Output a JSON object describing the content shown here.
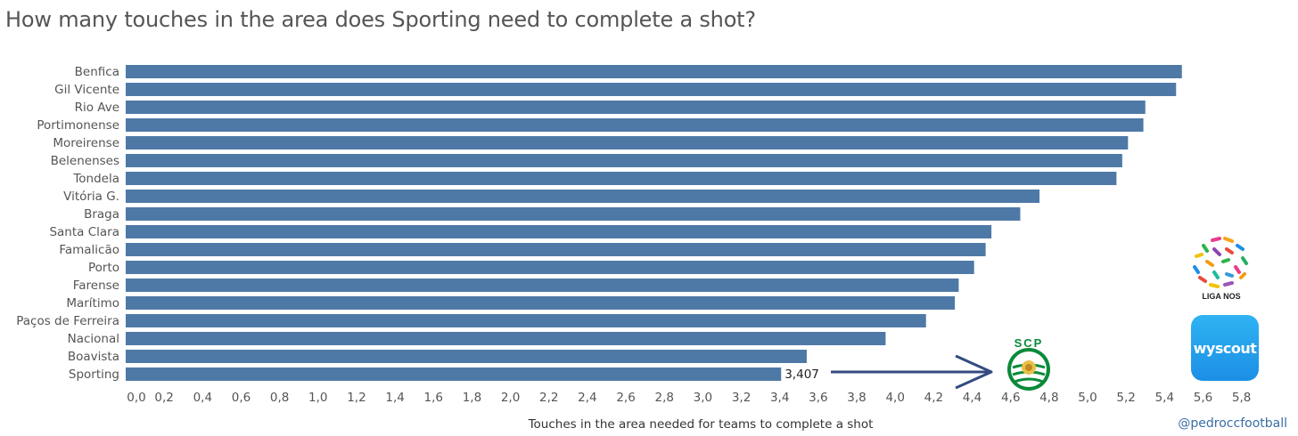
{
  "title": "How many touches in the area does Sporting need to complete a shot?",
  "credit": "@pedroccfootball",
  "logos": {
    "wyscout_text": "wyscout",
    "liga_text": "LIGA NOS",
    "sporting_text": "SCP"
  },
  "colors": {
    "bar": "#4e79a7",
    "arrow": "#344a7f",
    "sporting_green": "#0a8a3a"
  },
  "chart_data": {
    "type": "bar",
    "orientation": "horizontal",
    "categories": [
      "Benfica",
      "Gil Vicente",
      "Rio Ave",
      "Portimonense",
      "Moreirense",
      "Belenenses",
      "Tondela",
      "Vitória G.",
      "Braga",
      "Santa Clara",
      "Famalicão",
      "Porto",
      "Farense",
      "Marítimo",
      "Paços de Ferreira",
      "Nacional",
      "Boavista",
      "Sporting"
    ],
    "values": [
      5.49,
      5.46,
      5.3,
      5.29,
      5.21,
      5.18,
      5.15,
      4.75,
      4.65,
      4.5,
      4.47,
      4.41,
      4.33,
      4.31,
      4.16,
      3.95,
      3.54,
      3.407
    ],
    "annotation": {
      "category": "Sporting",
      "text": "3,407"
    },
    "xlabel": "Touches in the area needed for teams to complete a shot",
    "ticks": [
      "0,0",
      "0,2",
      "0,4",
      "0,6",
      "0,8",
      "1,0",
      "1,2",
      "1,4",
      "1,6",
      "1,8",
      "2,0",
      "2,2",
      "2,4",
      "2,6",
      "2,8",
      "3,0",
      "3,2",
      "3,4",
      "3,6",
      "3,8",
      "4,0",
      "4,2",
      "4,4",
      "4,6",
      "4,8",
      "5,0",
      "5,2",
      "5,4",
      "5,6",
      "5,8"
    ],
    "xlim": [
      0,
      5.9
    ],
    "grid": false
  }
}
